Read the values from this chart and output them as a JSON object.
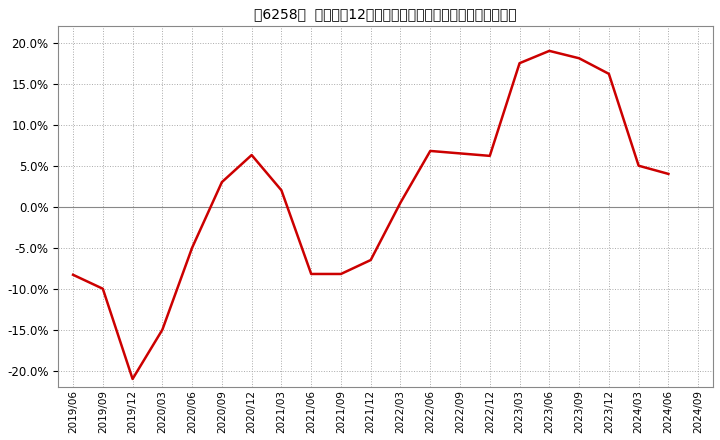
{
  "title_prefix": "[6258]",
  "title_body": "売上高の12か月移動合計の対前年同期増減率の推移",
  "line_color": "#cc0000",
  "background_color": "#ffffff",
  "plot_bg_color": "#ffffff",
  "grid_color": "#aaaaaa",
  "zero_line_color": "#888888",
  "ylim": [
    -0.22,
    0.22
  ],
  "yticks": [
    -0.2,
    -0.15,
    -0.1,
    -0.05,
    0.0,
    0.05,
    0.1,
    0.15,
    0.2
  ],
  "x_labels": [
    "2019/06",
    "2019/09",
    "2019/12",
    "2020/03",
    "2020/06",
    "2020/09",
    "2020/12",
    "2021/03",
    "2021/06",
    "2021/09",
    "2021/12",
    "2022/03",
    "2022/06",
    "2022/09",
    "2022/12",
    "2023/03",
    "2023/06",
    "2023/09",
    "2023/12",
    "2024/03",
    "2024/06",
    "2024/09"
  ],
  "x_values": [
    0,
    1,
    2,
    3,
    4,
    5,
    6,
    7,
    8,
    9,
    10,
    11,
    12,
    13,
    14,
    15,
    16,
    17,
    18,
    19,
    20,
    21
  ],
  "y_values": [
    -0.083,
    -0.1,
    -0.21,
    -0.15,
    -0.05,
    0.03,
    0.063,
    0.02,
    -0.082,
    -0.082,
    -0.065,
    0.005,
    0.068,
    0.065,
    0.062,
    0.175,
    0.19,
    0.181,
    0.162,
    0.05,
    0.04,
    null
  ]
}
